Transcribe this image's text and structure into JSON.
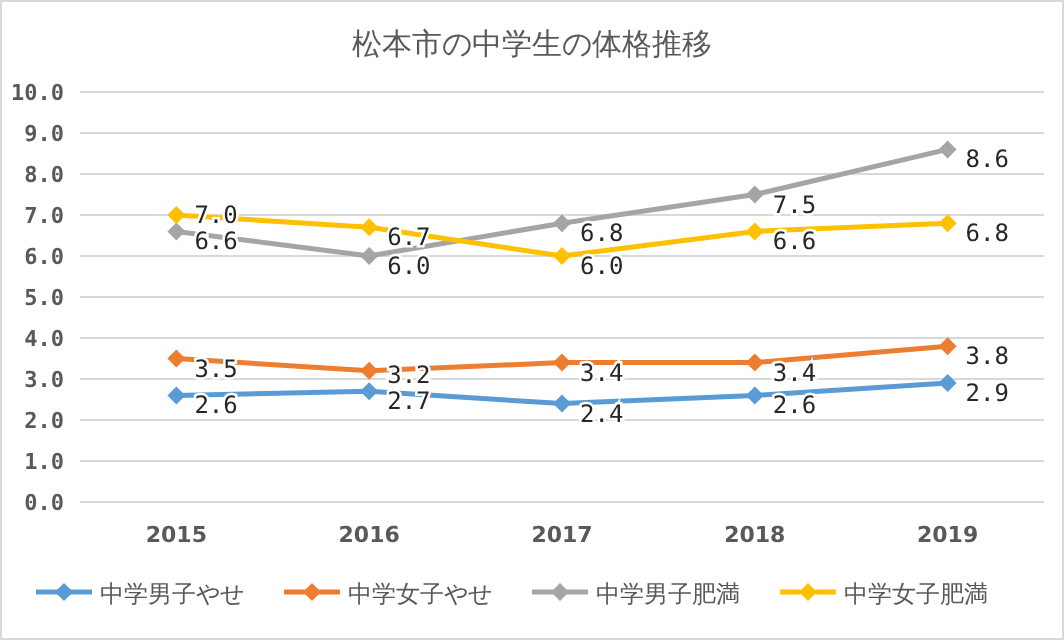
{
  "chart_data": {
    "type": "line",
    "title": "松本市の中学生の体格推移",
    "categories": [
      "2015",
      "2016",
      "2017",
      "2018",
      "2019"
    ],
    "series": [
      {
        "name": "中学男子やせ",
        "color": "#5b9bd5",
        "values": [
          2.6,
          2.7,
          2.4,
          2.6,
          2.9
        ],
        "value_labels": [
          "2.6",
          "2.7",
          "2.4",
          "2.6",
          "2.9"
        ]
      },
      {
        "name": "中学女子やせ",
        "color": "#ed7d31",
        "values": [
          3.5,
          3.2,
          3.4,
          3.4,
          3.8
        ],
        "value_labels": [
          "3.5",
          "3.2",
          "3.4",
          "3.4",
          "3.8"
        ]
      },
      {
        "name": "中学男子肥満",
        "color": "#a5a5a5",
        "values": [
          6.6,
          6.0,
          6.8,
          7.5,
          8.6
        ],
        "value_labels": [
          "6.6",
          "6.0",
          "6.8",
          "7.5",
          "8.6"
        ]
      },
      {
        "name": "中学女子肥満",
        "color": "#ffc000",
        "values": [
          7.0,
          6.7,
          6.0,
          6.6,
          6.8
        ],
        "value_labels": [
          "7.0",
          "6.7",
          "6.0",
          "6.6",
          "6.8"
        ]
      }
    ],
    "ylim": [
      0,
      10
    ],
    "yticks": [
      {
        "value": 0,
        "label": "0.0"
      },
      {
        "value": 1,
        "label": "1.0"
      },
      {
        "value": 2,
        "label": "2.0"
      },
      {
        "value": 3,
        "label": "3.0"
      },
      {
        "value": 4,
        "label": "4.0"
      },
      {
        "value": 5,
        "label": "5.0"
      },
      {
        "value": 6,
        "label": "6.0"
      },
      {
        "value": 7,
        "label": "7.0"
      },
      {
        "value": 8,
        "label": "8.0"
      },
      {
        "value": 9,
        "label": "9.0"
      },
      {
        "value": 10,
        "label": "10.0"
      }
    ],
    "grid": "y",
    "legend": "bottom",
    "marker": "diamond",
    "line_style": "solid"
  }
}
